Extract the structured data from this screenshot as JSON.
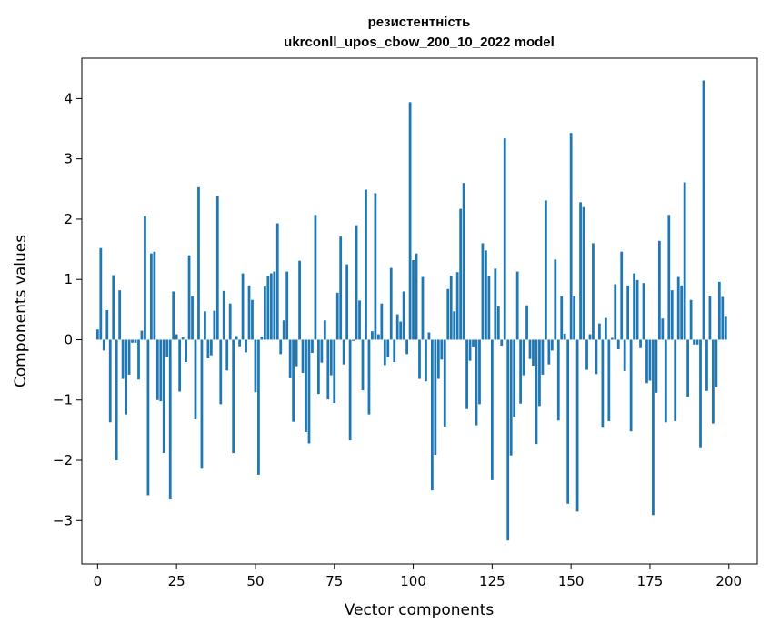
{
  "chart_data": {
    "type": "bar",
    "title_line1": "резистентність",
    "title_line2": "ukrconll_upos_cbow_200_10_2022 model",
    "xlabel": "Vector components",
    "ylabel": "Components values",
    "xlim": [
      -5,
      209
    ],
    "ylim": [
      -3.72,
      4.67
    ],
    "x_ticks": [
      0,
      25,
      50,
      75,
      100,
      125,
      150,
      175,
      200
    ],
    "y_ticks": [
      -3,
      -2,
      -1,
      0,
      1,
      2,
      3,
      4
    ],
    "y_tick_labels": [
      "−3",
      "−2",
      "−1",
      "0",
      "1",
      "2",
      "3",
      "4"
    ],
    "grid": false,
    "bar_color": "#1f77b4",
    "values": [
      0.17,
      1.52,
      -0.18,
      0.49,
      -1.37,
      1.07,
      -2.0,
      0.82,
      -0.65,
      -1.24,
      -0.58,
      -0.05,
      -0.05,
      -0.66,
      0.15,
      2.05,
      -2.58,
      1.43,
      1.46,
      -1.0,
      -1.02,
      -1.88,
      -0.28,
      -2.65,
      0.8,
      0.09,
      -0.86,
      0.04,
      -0.37,
      1.4,
      0.72,
      -1.32,
      2.53,
      -2.14,
      0.47,
      -0.31,
      -0.26,
      0.48,
      2.38,
      -1.07,
      0.81,
      -0.51,
      0.6,
      -1.88,
      0.06,
      -0.11,
      1.1,
      -0.21,
      0.9,
      0.66,
      -0.87,
      -2.24,
      0.05,
      0.88,
      1.05,
      1.1,
      1.13,
      1.93,
      -0.24,
      0.32,
      1.13,
      -0.64,
      -1.36,
      -0.44,
      1.31,
      -0.55,
      -1.53,
      -1.72,
      -0.22,
      2.07,
      -0.9,
      -0.38,
      0.32,
      -0.99,
      -0.59,
      -1.05,
      0.78,
      1.71,
      -0.41,
      1.25,
      -1.67,
      -0.02,
      1.9,
      0.65,
      -0.84,
      2.49,
      -1.24,
      0.14,
      2.43,
      0.09,
      0.6,
      -0.42,
      -0.29,
      1.19,
      -0.37,
      0.42,
      0.3,
      0.8,
      -0.24,
      3.94,
      1.32,
      1.43,
      -0.65,
      1.04,
      -0.69,
      0.12,
      -2.5,
      -1.91,
      -0.65,
      -0.33,
      -1.44,
      0.84,
      1.06,
      0.47,
      1.12,
      2.17,
      2.6,
      -1.15,
      -0.35,
      -0.12,
      -1.42,
      -1.07,
      1.6,
      1.48,
      1.05,
      -2.33,
      1.18,
      0.55,
      -0.1,
      3.34,
      -3.33,
      -1.92,
      -1.28,
      1.13,
      -1.06,
      -0.59,
      0.57,
      -0.32,
      -0.43,
      -1.73,
      -1.1,
      -0.58,
      2.31,
      -0.41,
      -0.18,
      1.33,
      -1.34,
      0.72,
      0.1,
      -2.72,
      3.43,
      0.72,
      -2.85,
      2.28,
      2.2,
      -0.5,
      0.09,
      1.6,
      -0.57,
      0.27,
      -1.46,
      0.36,
      -1.35,
      0.03,
      0.92,
      -0.16,
      1.46,
      -0.52,
      0.9,
      -1.52,
      1.1,
      0.99,
      -0.14,
      0.94,
      -0.72,
      -0.68,
      -2.91,
      -0.88,
      1.64,
      0.35,
      -1.37,
      2.07,
      0.82,
      -1.35,
      1.04,
      0.9,
      2.61,
      -0.95,
      0.66,
      -0.08,
      -0.08,
      -1.8,
      4.3,
      -0.85,
      0.72,
      -1.39,
      -0.79,
      0.96,
      0.71,
      0.38
    ]
  }
}
